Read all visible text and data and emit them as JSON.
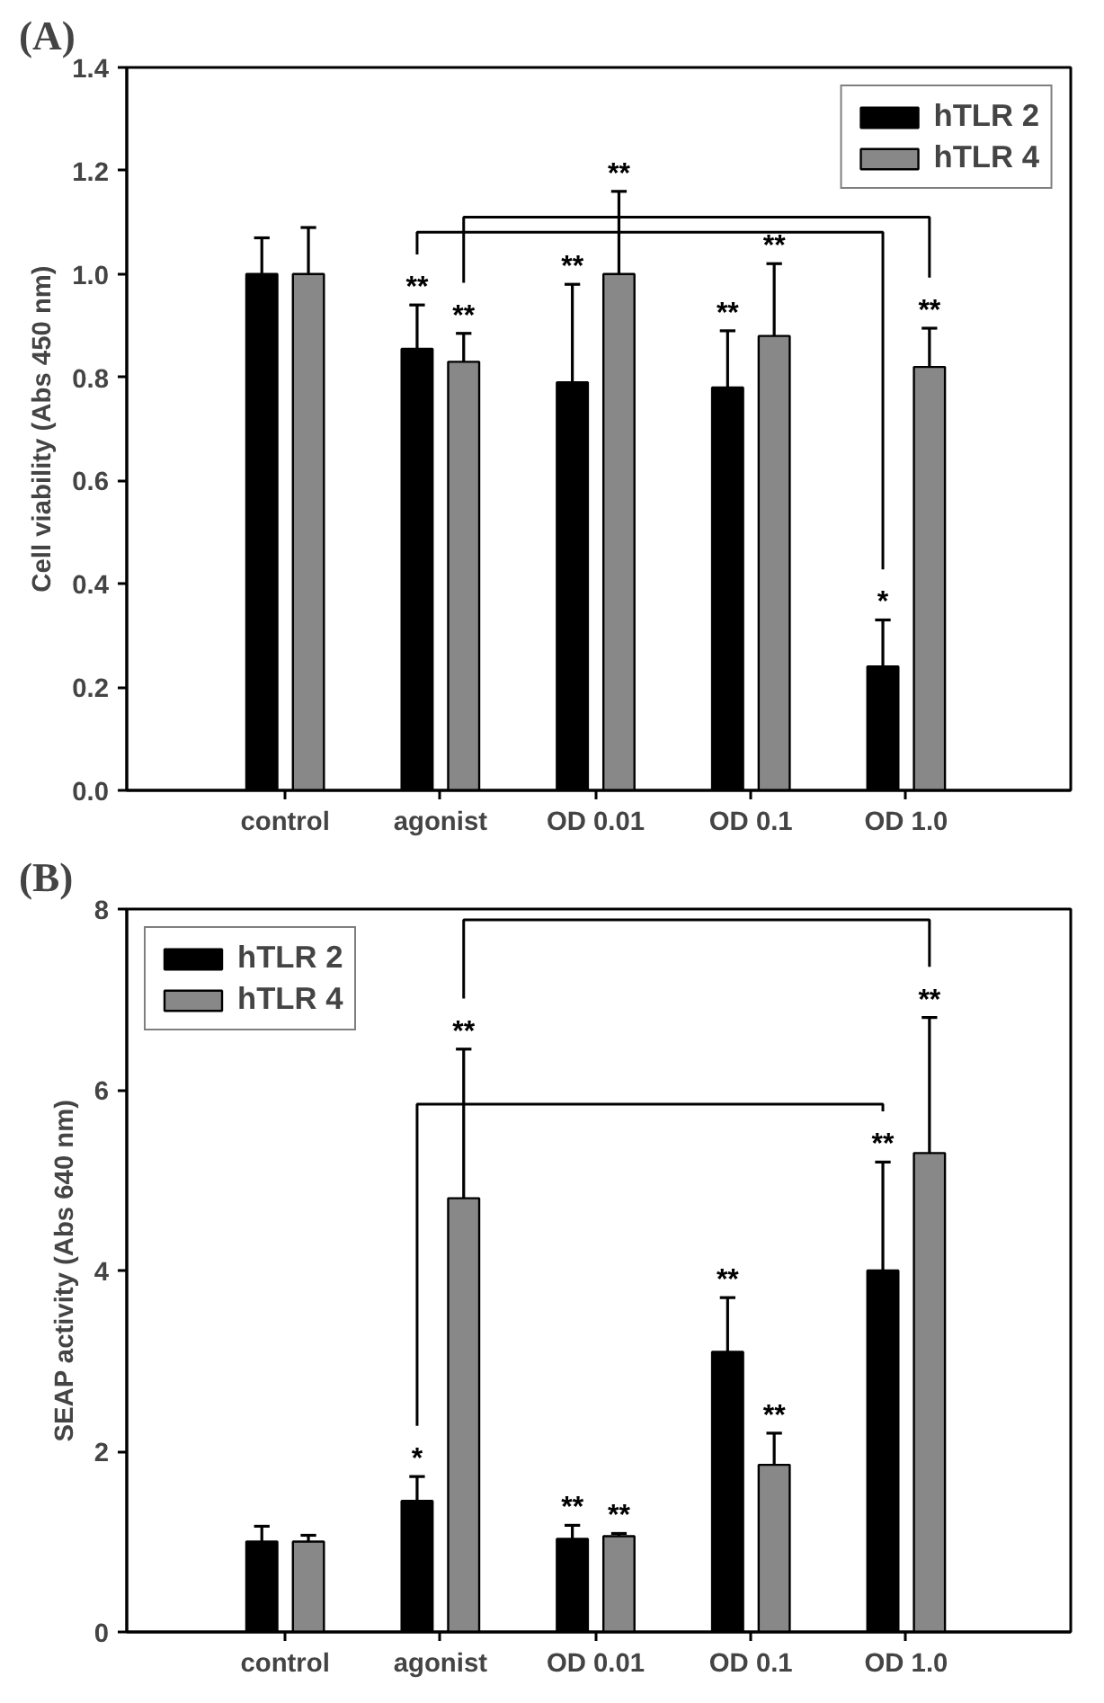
{
  "chart_data": [
    {
      "type": "bar",
      "title": "(A)",
      "ylabel": "Cell viability (Abs 450 nm)",
      "categories": [
        "control",
        "agonist",
        "OD 0.01",
        "OD 0.1",
        "OD 1.0"
      ],
      "series": [
        {
          "name": "hTLR 2",
          "color": "#000000",
          "values": [
            1.0,
            0.855,
            0.79,
            0.78,
            0.24
          ],
          "errors": [
            [
              1.0,
              1.07
            ],
            [
              0.855,
              0.94
            ],
            [
              0.79,
              0.98
            ],
            [
              0.78,
              0.89
            ],
            [
              0.24,
              0.33
            ]
          ]
        },
        {
          "name": "hTLR 4",
          "color": "#888888",
          "values": [
            1.0,
            0.83,
            1.0,
            0.88,
            0.82
          ],
          "errors": [
            [
              1.0,
              1.09
            ],
            [
              0.83,
              0.885
            ],
            [
              1.0,
              1.16
            ],
            [
              0.88,
              1.02
            ],
            [
              0.82,
              0.895
            ]
          ]
        }
      ],
      "ylim": [
        0,
        1.4
      ],
      "yticks": [
        {
          "value": 0,
          "label": "0.0"
        },
        0.2,
        0.4,
        0.6,
        0.8,
        {
          "value": 1.0,
          "label": "1.0"
        },
        1.2,
        1.4
      ],
      "annotations": [
        "**",
        "**",
        "**",
        "**",
        "**",
        "**",
        "*",
        "**"
      ],
      "legend": "top right",
      "grid": false
    },
    {
      "type": "bar",
      "title": "(B)",
      "ylabel": "SEAP activity (Abs 640 nm)",
      "categories": [
        "control",
        "agonist",
        "OD 0.01",
        "OD 0.1",
        "OD 1.0"
      ],
      "series": [
        {
          "name": "hTLR 2",
          "color": "#000000",
          "values": [
            1.0,
            1.45,
            1.03,
            3.1,
            4.0
          ],
          "errors": [
            [
              1.0,
              1.17
            ],
            [
              1.45,
              1.72
            ],
            [
              1.03,
              1.18
            ],
            [
              3.1,
              3.7
            ],
            [
              4.0,
              5.2
            ]
          ]
        },
        {
          "name": "hTLR 4",
          "color": "#888888",
          "values": [
            1.0,
            4.8,
            1.06,
            1.85,
            5.3
          ],
          "errors": [
            [
              1.0,
              1.07
            ],
            [
              4.8,
              6.45
            ],
            [
              1.06,
              1.09
            ],
            [
              1.85,
              2.2
            ],
            [
              5.3,
              6.8
            ]
          ]
        }
      ],
      "ylim": [
        0,
        8
      ],
      "yticks": [
        0,
        2,
        4,
        6,
        8
      ],
      "annotations": [
        "*",
        "**",
        "**",
        "**",
        "**",
        "**",
        "**",
        "**"
      ],
      "legend": "top left",
      "grid": false
    }
  ]
}
